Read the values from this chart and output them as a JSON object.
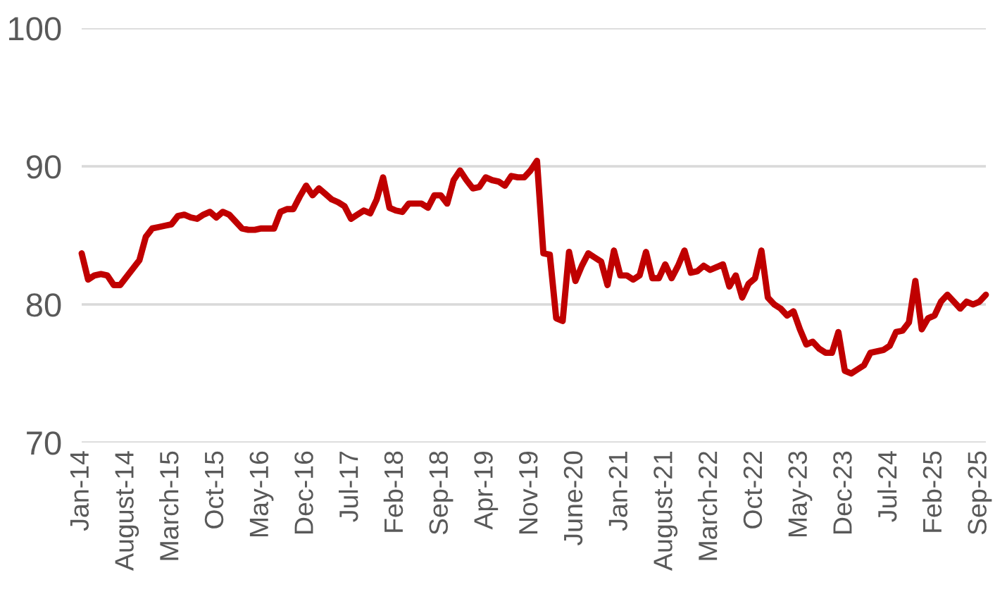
{
  "chart_data": {
    "type": "line",
    "categories": [
      "Jan-14",
      null,
      null,
      null,
      null,
      null,
      null,
      "August-14",
      null,
      null,
      null,
      null,
      null,
      null,
      "March-15",
      null,
      null,
      null,
      null,
      null,
      null,
      "Oct-15",
      null,
      null,
      null,
      null,
      null,
      null,
      "May-16",
      null,
      null,
      null,
      null,
      null,
      null,
      "Dec-16",
      null,
      null,
      null,
      null,
      null,
      null,
      "Jul-17",
      null,
      null,
      null,
      null,
      null,
      null,
      "Feb-18",
      null,
      null,
      null,
      null,
      null,
      null,
      "Sep-18",
      null,
      null,
      null,
      null,
      null,
      null,
      "Apr-19",
      null,
      null,
      null,
      null,
      null,
      null,
      "Nov-19",
      null,
      null,
      null,
      null,
      null,
      null,
      "June-20",
      null,
      null,
      null,
      null,
      null,
      null,
      "Jan-21",
      null,
      null,
      null,
      null,
      null,
      null,
      "August-21",
      null,
      null,
      null,
      null,
      null,
      null,
      "March-22",
      null,
      null,
      null,
      null,
      null,
      null,
      "Oct-22",
      null,
      null,
      null,
      null,
      null,
      null,
      "May-23",
      null,
      null,
      null,
      null,
      null,
      null,
      "Dec-23",
      null,
      null,
      null,
      null,
      null,
      null,
      "Jul-24",
      null,
      null,
      null,
      null,
      null,
      null,
      "Feb-25",
      null,
      null,
      null,
      null,
      null,
      null,
      "Sep-25",
      null
    ],
    "series": [
      {
        "color": "#c00000",
        "values": [
          83.7,
          81.8,
          82.1,
          82.2,
          82.1,
          81.4,
          81.4,
          82.0,
          82.6,
          83.2,
          84.9,
          85.5,
          85.6,
          85.7,
          85.8,
          86.4,
          86.5,
          86.3,
          86.2,
          86.5,
          86.7,
          86.3,
          86.7,
          86.5,
          86.0,
          85.5,
          85.4,
          85.4,
          85.5,
          85.5,
          85.5,
          86.7,
          86.9,
          86.9,
          87.8,
          88.6,
          87.9,
          88.4,
          88.0,
          87.6,
          87.4,
          87.1,
          86.2,
          86.5,
          86.8,
          86.6,
          87.6,
          89.2,
          87.0,
          86.8,
          86.7,
          87.3,
          87.3,
          87.3,
          87.0,
          87.9,
          87.9,
          87.3,
          89.0,
          89.7,
          89.0,
          88.4,
          88.5,
          89.2,
          89.0,
          88.9,
          88.6,
          89.3,
          89.2,
          89.2,
          89.7,
          90.4,
          83.7,
          83.6,
          79.0,
          78.8,
          83.8,
          81.7,
          82.8,
          83.7,
          83.4,
          83.1,
          81.4,
          83.9,
          82.1,
          82.1,
          81.8,
          82.1,
          83.8,
          81.9,
          81.9,
          82.9,
          81.9,
          82.8,
          83.9,
          82.3,
          82.4,
          82.8,
          82.5,
          82.7,
          82.9,
          81.3,
          82.1,
          80.5,
          81.5,
          81.9,
          83.9,
          80.5,
          80.0,
          79.7,
          79.2,
          79.5,
          78.2,
          77.1,
          77.3,
          76.8,
          76.5,
          76.5,
          78.0,
          75.2,
          75.0,
          75.3,
          75.6,
          76.5,
          76.6,
          76.7,
          77.0,
          78.0,
          78.1,
          78.7,
          81.7,
          78.2,
          79.0,
          79.2,
          80.2,
          80.7,
          80.2,
          79.7,
          80.2,
          80.0,
          80.2,
          80.7
        ]
      }
    ],
    "ylim": [
      70,
      100
    ],
    "yticks": [
      70,
      80,
      90,
      100
    ],
    "grid": "y",
    "line_style": "solid",
    "marker": "none"
  }
}
